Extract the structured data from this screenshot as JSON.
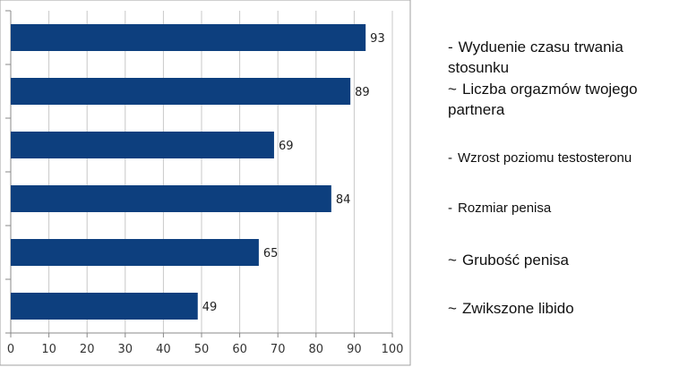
{
  "chart_data": {
    "type": "bar",
    "orientation": "horizontal",
    "categories": [
      "Wyduenie czasu trwania stosunku",
      "Liczba orgazmów twojego partnera",
      "Wzrost poziomu testosteronu",
      "Rozmiar penisa",
      "Grubość penisa",
      "Zwikszone libido"
    ],
    "values": [
      93,
      89,
      69,
      84,
      65,
      49
    ],
    "xlim": [
      0,
      100
    ],
    "x_ticks": [
      0,
      10,
      20,
      30,
      40,
      50,
      60,
      70,
      80,
      90,
      100
    ],
    "grid": true,
    "data_labels": true,
    "legend_placement": "right",
    "colors": {
      "bar": "#0d3f7e",
      "grid": "#c8c8c8",
      "frame": "#a0a0a0"
    }
  },
  "legend": {
    "items": [
      {
        "marker": "-",
        "lines": [
          "Wyduenie czasu trwania",
          "stosunku"
        ]
      },
      {
        "marker": "~",
        "lines": [
          "Liczba orgazmów twojego",
          "partnera"
        ]
      },
      {
        "marker": "-",
        "lines": [
          "Wzrost poziomu testosteronu"
        ]
      },
      {
        "marker": "-",
        "lines": [
          "Rozmiar penisa"
        ]
      },
      {
        "marker": "~",
        "lines": [
          "Grubość penisa"
        ]
      },
      {
        "marker": "~",
        "lines": [
          "Zwikszone libido"
        ]
      }
    ]
  }
}
